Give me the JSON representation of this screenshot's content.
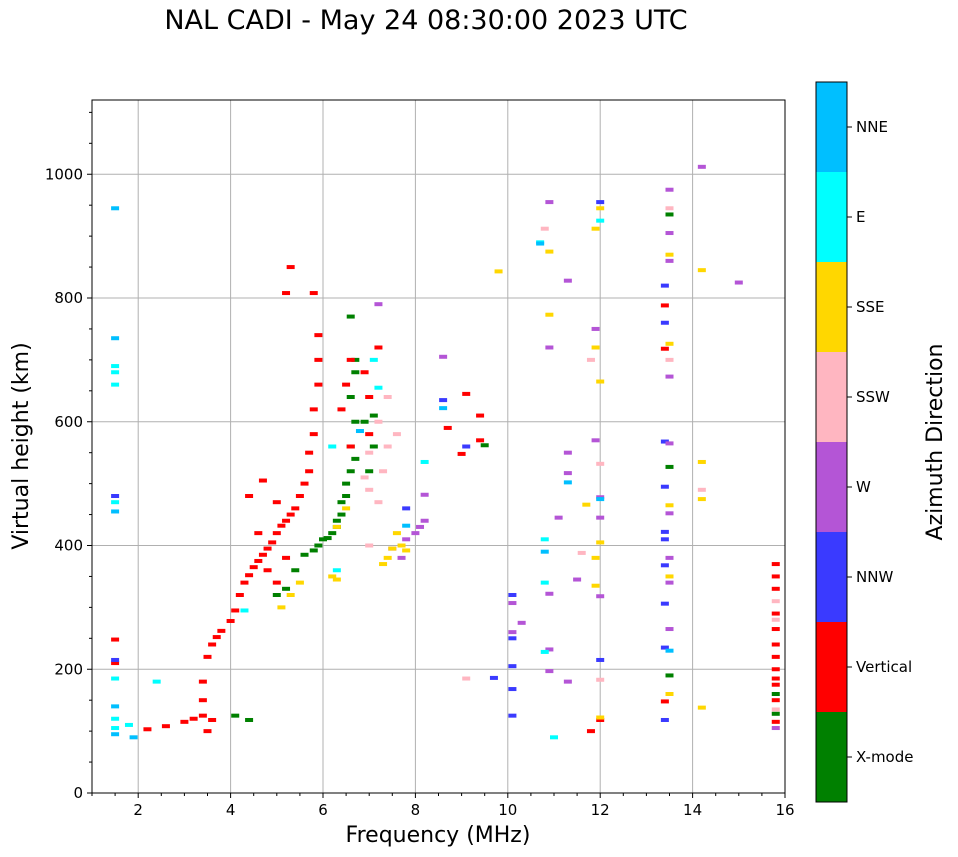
{
  "chart_data": {
    "type": "scatter",
    "title": "NAL CADI - May 24 08:30:00 2023 UTC",
    "xlabel": "Frequency (MHz)",
    "ylabel": "Virtual height (km)",
    "xlim": [
      1,
      16
    ],
    "ylim": [
      0,
      1120
    ],
    "xticks": [
      2,
      4,
      6,
      8,
      10,
      12,
      14,
      16
    ],
    "yticks": [
      0,
      200,
      400,
      600,
      800,
      1000
    ],
    "grid": true,
    "colorbar": {
      "label": "Azimuth Direction",
      "categories": [
        {
          "name": "X-mode",
          "color": "#008000"
        },
        {
          "name": "Vertical",
          "color": "#ff0000"
        },
        {
          "name": "NNW",
          "color": "#3a3aff"
        },
        {
          "name": "W",
          "color": "#b455d6"
        },
        {
          "name": "SSW",
          "color": "#ffb6c1"
        },
        {
          "name": "SSE",
          "color": "#ffd700"
        },
        {
          "name": "E",
          "color": "#00ffff"
        },
        {
          "name": "NNE",
          "color": "#00bfff"
        }
      ]
    },
    "series": [
      {
        "name": "X-mode",
        "points": [
          [
            4.4,
            118
          ],
          [
            4.1,
            125
          ],
          [
            5.6,
            385
          ],
          [
            5.8,
            392
          ],
          [
            5.9,
            400
          ],
          [
            6.0,
            410
          ],
          [
            6.1,
            412
          ],
          [
            6.2,
            420
          ],
          [
            6.3,
            430
          ],
          [
            6.3,
            440
          ],
          [
            6.4,
            450
          ],
          [
            6.4,
            470
          ],
          [
            6.5,
            480
          ],
          [
            6.5,
            500
          ],
          [
            6.6,
            520
          ],
          [
            6.7,
            540
          ],
          [
            6.6,
            560
          ],
          [
            6.7,
            600
          ],
          [
            6.6,
            640
          ],
          [
            6.7,
            680
          ],
          [
            6.7,
            700
          ],
          [
            6.6,
            770
          ],
          [
            7.1,
            560
          ],
          [
            7.0,
            520
          ],
          [
            5.4,
            360
          ],
          [
            5.2,
            330
          ],
          [
            5.0,
            320
          ],
          [
            6.9,
            600
          ],
          [
            7.1,
            610
          ],
          [
            13.5,
            935
          ],
          [
            13.5,
            527
          ],
          [
            13.5,
            190
          ],
          [
            15.8,
            160
          ],
          [
            15.8,
            128
          ],
          [
            9.5,
            562
          ]
        ]
      },
      {
        "name": "Vertical",
        "points": [
          [
            1.5,
            210
          ],
          [
            1.5,
            248
          ],
          [
            2.2,
            103
          ],
          [
            2.6,
            108
          ],
          [
            3.0,
            115
          ],
          [
            3.2,
            120
          ],
          [
            3.4,
            125
          ],
          [
            3.6,
            118
          ],
          [
            3.5,
            100
          ],
          [
            3.4,
            150
          ],
          [
            3.4,
            180
          ],
          [
            3.5,
            220
          ],
          [
            3.6,
            240
          ],
          [
            3.7,
            252
          ],
          [
            3.8,
            262
          ],
          [
            4.0,
            278
          ],
          [
            4.1,
            295
          ],
          [
            4.2,
            320
          ],
          [
            4.3,
            340
          ],
          [
            4.4,
            352
          ],
          [
            4.5,
            365
          ],
          [
            4.6,
            375
          ],
          [
            4.7,
            385
          ],
          [
            4.8,
            395
          ],
          [
            4.9,
            405
          ],
          [
            5.0,
            420
          ],
          [
            5.1,
            432
          ],
          [
            5.2,
            440
          ],
          [
            5.3,
            450
          ],
          [
            5.4,
            460
          ],
          [
            5.5,
            480
          ],
          [
            5.6,
            500
          ],
          [
            5.7,
            520
          ],
          [
            5.7,
            550
          ],
          [
            5.8,
            580
          ],
          [
            5.8,
            620
          ],
          [
            5.9,
            660
          ],
          [
            5.9,
            700
          ],
          [
            5.9,
            740
          ],
          [
            5.8,
            808
          ],
          [
            5.2,
            808
          ],
          [
            5.3,
            850
          ],
          [
            5.0,
            470
          ],
          [
            4.7,
            505
          ],
          [
            4.4,
            480
          ],
          [
            4.6,
            420
          ],
          [
            4.8,
            360
          ],
          [
            5.0,
            340
          ],
          [
            5.2,
            380
          ],
          [
            6.4,
            620
          ],
          [
            6.5,
            660
          ],
          [
            6.6,
            700
          ],
          [
            6.6,
            560
          ],
          [
            6.9,
            680
          ],
          [
            7.0,
            640
          ],
          [
            7.2,
            720
          ],
          [
            7.0,
            580
          ],
          [
            8.7,
            590
          ],
          [
            9.1,
            645
          ],
          [
            9.0,
            548
          ],
          [
            9.4,
            570
          ],
          [
            9.4,
            610
          ],
          [
            13.4,
            788
          ],
          [
            13.4,
            718
          ],
          [
            13.4,
            148
          ],
          [
            12.0,
            118
          ],
          [
            11.8,
            100
          ],
          [
            15.8,
            370
          ],
          [
            15.8,
            350
          ],
          [
            15.8,
            330
          ],
          [
            15.8,
            290
          ],
          [
            15.8,
            265
          ],
          [
            15.8,
            240
          ],
          [
            15.8,
            220
          ],
          [
            15.8,
            200
          ],
          [
            15.8,
            185
          ],
          [
            15.8,
            175
          ],
          [
            15.8,
            150
          ],
          [
            15.8,
            115
          ]
        ]
      },
      {
        "name": "NNW",
        "points": [
          [
            1.5,
            215
          ],
          [
            1.5,
            480
          ],
          [
            7.8,
            460
          ],
          [
            10.1,
            320
          ],
          [
            10.1,
            250
          ],
          [
            10.1,
            205
          ],
          [
            10.1,
            168
          ],
          [
            10.1,
            125
          ],
          [
            9.7,
            186
          ],
          [
            12.0,
            215
          ],
          [
            12.0,
            955
          ],
          [
            13.4,
            820
          ],
          [
            13.4,
            760
          ],
          [
            13.4,
            568
          ],
          [
            13.4,
            495
          ],
          [
            13.4,
            422
          ],
          [
            13.4,
            410
          ],
          [
            13.4,
            368
          ],
          [
            13.4,
            306
          ],
          [
            13.4,
            235
          ],
          [
            13.4,
            118
          ],
          [
            8.6,
            635
          ],
          [
            9.1,
            560
          ]
        ]
      },
      {
        "name": "W",
        "points": [
          [
            7.2,
            790
          ],
          [
            7.5,
            395
          ],
          [
            7.7,
            380
          ],
          [
            7.8,
            410
          ],
          [
            8.0,
            420
          ],
          [
            8.1,
            430
          ],
          [
            8.2,
            440
          ],
          [
            8.2,
            482
          ],
          [
            8.6,
            705
          ],
          [
            10.1,
            307
          ],
          [
            10.1,
            260
          ],
          [
            10.9,
            955
          ],
          [
            10.9,
            720
          ],
          [
            10.9,
            322
          ],
          [
            10.9,
            232
          ],
          [
            10.9,
            197
          ],
          [
            11.3,
            828
          ],
          [
            11.3,
            550
          ],
          [
            11.3,
            517
          ],
          [
            11.3,
            180
          ],
          [
            11.5,
            345
          ],
          [
            11.9,
            750
          ],
          [
            11.9,
            570
          ],
          [
            12.0,
            478
          ],
          [
            12.0,
            445
          ],
          [
            12.0,
            318
          ],
          [
            13.5,
            975
          ],
          [
            13.5,
            905
          ],
          [
            13.5,
            860
          ],
          [
            13.5,
            673
          ],
          [
            13.5,
            565
          ],
          [
            13.5,
            452
          ],
          [
            13.5,
            380
          ],
          [
            13.5,
            340
          ],
          [
            13.5,
            265
          ],
          [
            14.2,
            1012
          ],
          [
            15.0,
            825
          ],
          [
            15.8,
            105
          ],
          [
            11.1,
            445
          ],
          [
            10.3,
            275
          ]
        ]
      },
      {
        "name": "SSW",
        "points": [
          [
            7.0,
            490
          ],
          [
            7.2,
            470
          ],
          [
            7.3,
            520
          ],
          [
            7.4,
            560
          ],
          [
            7.2,
            600
          ],
          [
            7.0,
            550
          ],
          [
            7.4,
            640
          ],
          [
            7.6,
            580
          ],
          [
            6.9,
            510
          ],
          [
            10.8,
            912
          ],
          [
            11.8,
            700
          ],
          [
            12.0,
            532
          ],
          [
            12.0,
            183
          ],
          [
            13.5,
            945
          ],
          [
            13.5,
            700
          ],
          [
            14.2,
            490
          ],
          [
            11.6,
            388
          ],
          [
            9.1,
            185
          ],
          [
            15.8,
            310
          ],
          [
            15.8,
            280
          ],
          [
            15.8,
            135
          ],
          [
            7.0,
            400
          ]
        ]
      },
      {
        "name": "SSE",
        "points": [
          [
            5.1,
            300
          ],
          [
            5.3,
            320
          ],
          [
            5.5,
            340
          ],
          [
            6.2,
            350
          ],
          [
            6.3,
            430
          ],
          [
            6.5,
            460
          ],
          [
            7.4,
            380
          ],
          [
            7.5,
            395
          ],
          [
            7.7,
            400
          ],
          [
            7.8,
            392
          ],
          [
            7.6,
            420
          ],
          [
            7.3,
            370
          ],
          [
            9.8,
            843
          ],
          [
            10.9,
            875
          ],
          [
            10.9,
            773
          ],
          [
            11.7,
            466
          ],
          [
            11.9,
            912
          ],
          [
            11.9,
            720
          ],
          [
            11.9,
            335
          ],
          [
            11.9,
            380
          ],
          [
            12.0,
            665
          ],
          [
            12.0,
            405
          ],
          [
            12.0,
            122
          ],
          [
            12.0,
            945
          ],
          [
            13.5,
            870
          ],
          [
            13.5,
            726
          ],
          [
            13.5,
            465
          ],
          [
            13.5,
            350
          ],
          [
            13.5,
            160
          ],
          [
            14.2,
            845
          ],
          [
            14.2,
            535
          ],
          [
            14.2,
            475
          ],
          [
            14.2,
            138
          ],
          [
            6.3,
            345
          ]
        ]
      },
      {
        "name": "E",
        "points": [
          [
            1.5,
            680
          ],
          [
            1.5,
            690
          ],
          [
            1.5,
            660
          ],
          [
            1.5,
            470
          ],
          [
            1.5,
            120
          ],
          [
            1.5,
            105
          ],
          [
            1.5,
            185
          ],
          [
            1.8,
            110
          ],
          [
            2.4,
            180
          ],
          [
            4.3,
            295
          ],
          [
            6.3,
            360
          ],
          [
            7.1,
            700
          ],
          [
            7.2,
            655
          ],
          [
            8.2,
            535
          ],
          [
            10.8,
            410
          ],
          [
            10.8,
            340
          ],
          [
            10.8,
            228
          ],
          [
            11.0,
            90
          ],
          [
            12.0,
            925
          ],
          [
            10.7,
            890
          ],
          [
            6.2,
            560
          ]
        ]
      },
      {
        "name": "NNE",
        "points": [
          [
            1.5,
            945
          ],
          [
            1.5,
            735
          ],
          [
            1.5,
            455
          ],
          [
            1.5,
            140
          ],
          [
            1.5,
            95
          ],
          [
            1.9,
            90
          ],
          [
            7.8,
            432
          ],
          [
            8.6,
            622
          ],
          [
            10.7,
            888
          ],
          [
            10.8,
            390
          ],
          [
            11.3,
            502
          ],
          [
            12.0,
            475
          ],
          [
            13.5,
            230
          ],
          [
            6.8,
            585
          ]
        ]
      }
    ]
  }
}
